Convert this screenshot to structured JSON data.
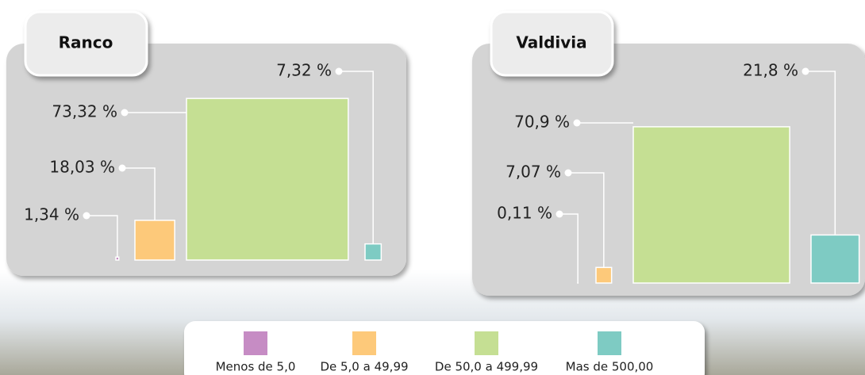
{
  "chart_data": [
    {
      "type": "bar",
      "title": "Ranco",
      "categories": [
        "Menos de 5,0",
        "De 5,0 a 49,99",
        "De 50,0 a 499,99",
        "Mas de 500,00"
      ],
      "values": [
        1.34,
        18.03,
        73.32,
        7.32
      ],
      "value_labels": [
        "1,34 %",
        "18,03 %",
        "73,32 %",
        "7,32 %"
      ],
      "colors": [
        "#c68cc4",
        "#fdc97a",
        "#c5df93",
        "#7ecbc3"
      ]
    },
    {
      "type": "bar",
      "title": "Valdivia",
      "categories": [
        "Menos de 5,0",
        "De 5,0 a 49,99",
        "De 50,0 a 499,99",
        "Mas de 500,00"
      ],
      "values": [
        0.11,
        7.07,
        70.9,
        21.8
      ],
      "value_labels": [
        "0,11 %",
        "7,07 %",
        "70,9 %",
        "21,8 %"
      ],
      "colors": [
        "#c68cc4",
        "#fdc97a",
        "#c5df93",
        "#7ecbc3"
      ]
    }
  ]
}
